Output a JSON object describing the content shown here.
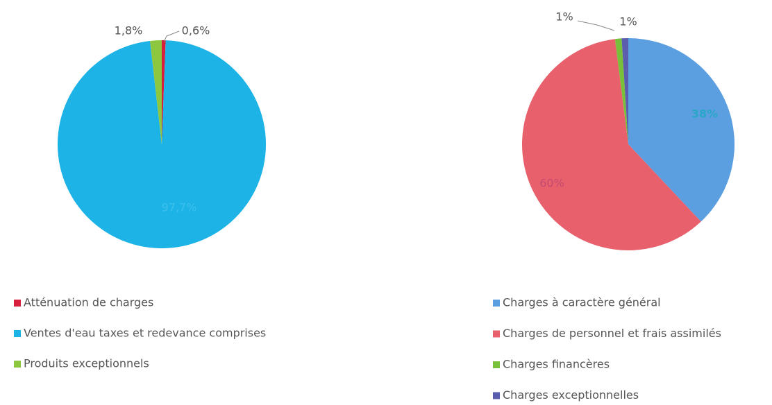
{
  "chart_data": [
    {
      "type": "pie",
      "categories": [
        "Atténuation de charges",
        "Ventes d'eau taxes et redevance comprises",
        "Produits exceptionnels"
      ],
      "values": [
        0.6,
        97.7,
        1.8
      ],
      "value_labels": [
        "0,6%",
        "97,7%",
        "1,8%"
      ],
      "colors": [
        "#d71e3c",
        "#1eb3e6",
        "#8dc63f"
      ],
      "legend": "bottom"
    },
    {
      "type": "pie",
      "categories": [
        "Charges à caractère général",
        "Charges de personnel et frais assimilés",
        "Charges financères",
        "Charges exceptionnelles"
      ],
      "values": [
        38,
        60,
        1,
        1
      ],
      "value_labels": [
        "38%",
        "60%",
        "1%",
        "1%"
      ],
      "colors": [
        "#5b9fe0",
        "#e8606c",
        "#78bf3a",
        "#5a5ead"
      ],
      "legend": "bottom"
    }
  ]
}
